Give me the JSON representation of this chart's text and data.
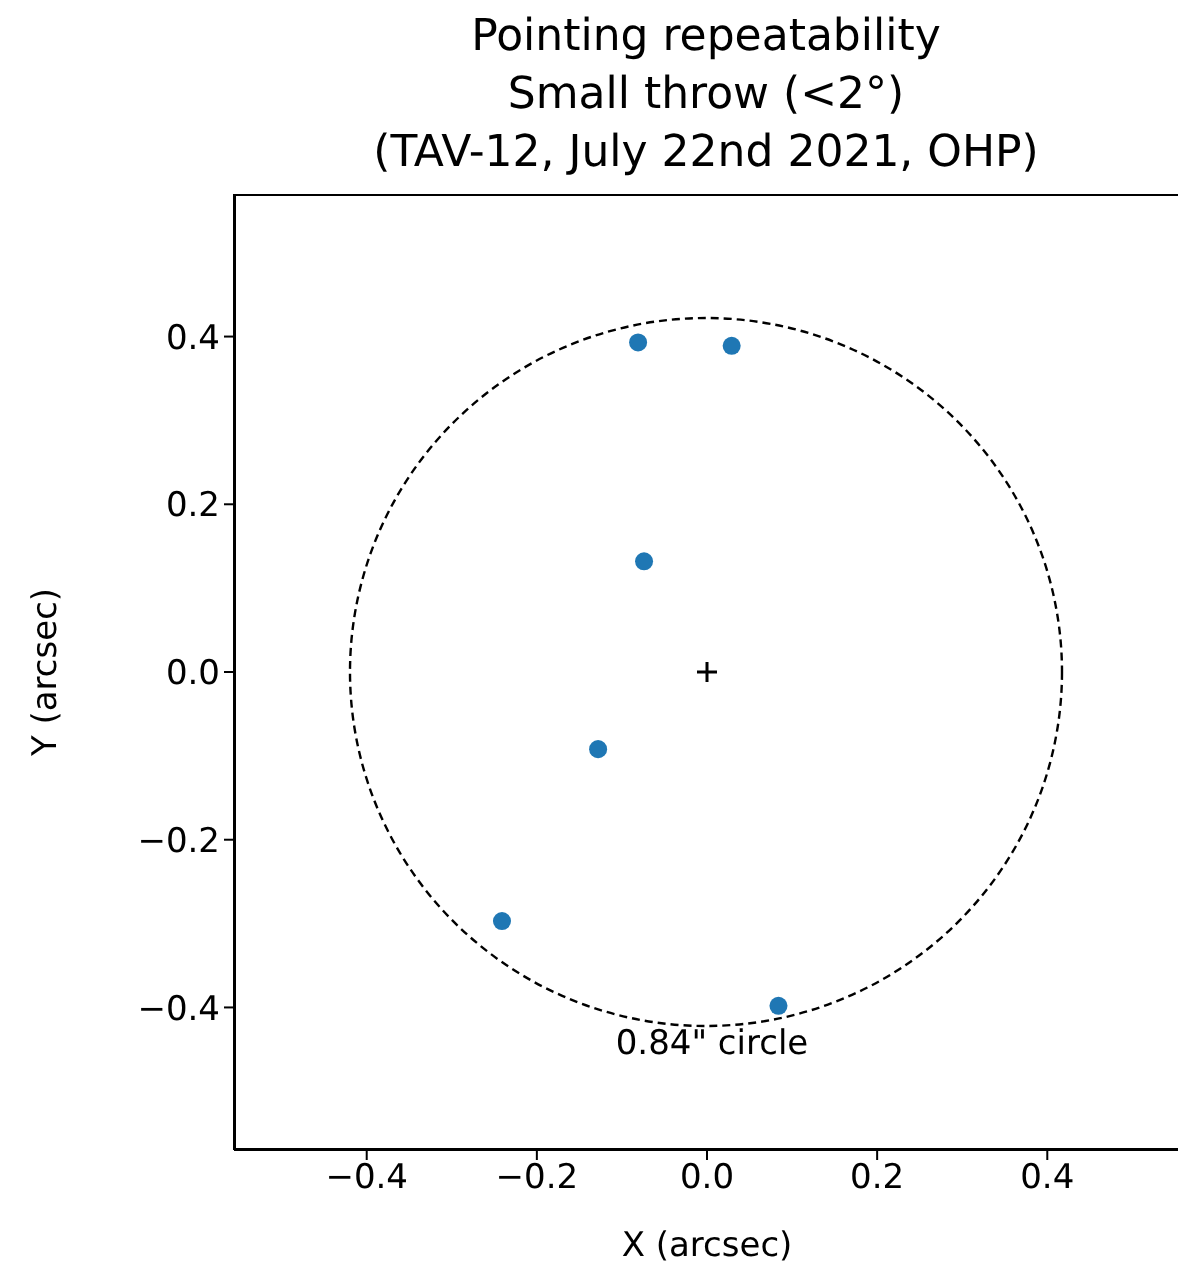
{
  "chart_data": {
    "type": "scatter",
    "title": "Pointing repeatability\nSmall throw (<2°)\n(TAV-12, July 22nd 2021, OHP)",
    "xlabel": "X (arcsec)",
    "ylabel": "Y (arcsec)",
    "xlim": [
      -0.556,
      0.556
    ],
    "ylim": [
      -0.57,
      0.57
    ],
    "xticks": [
      {
        "value": -0.4,
        "label": "−0.4"
      },
      {
        "value": -0.2,
        "label": "−0.2"
      },
      {
        "value": 0,
        "label": "0.0"
      },
      {
        "value": 0.2,
        "label": "0.2"
      },
      {
        "value": 0.4,
        "label": "0.4"
      }
    ],
    "yticks": [
      {
        "value": -0.4,
        "label": "−0.4"
      },
      {
        "value": -0.2,
        "label": "−0.2"
      },
      {
        "value": 0,
        "label": "0.0"
      },
      {
        "value": 0.2,
        "label": "0.2"
      },
      {
        "value": 0.4,
        "label": "0.4"
      }
    ],
    "annotations": [
      "0.84\" circle"
    ],
    "series": [
      {
        "type": "scatter",
        "marker": "circle",
        "color": "#1f77b4",
        "x": [
          -0.081,
          0.029,
          -0.074,
          -0.128,
          -0.241,
          0.084
        ],
        "values": [
          0.393,
          0.389,
          0.132,
          -0.092,
          -0.297,
          -0.398
        ]
      },
      {
        "type": "scatter",
        "marker": "cross",
        "color": "#000000",
        "x": [
          0
        ],
        "values": [
          0
        ]
      }
    ]
  }
}
